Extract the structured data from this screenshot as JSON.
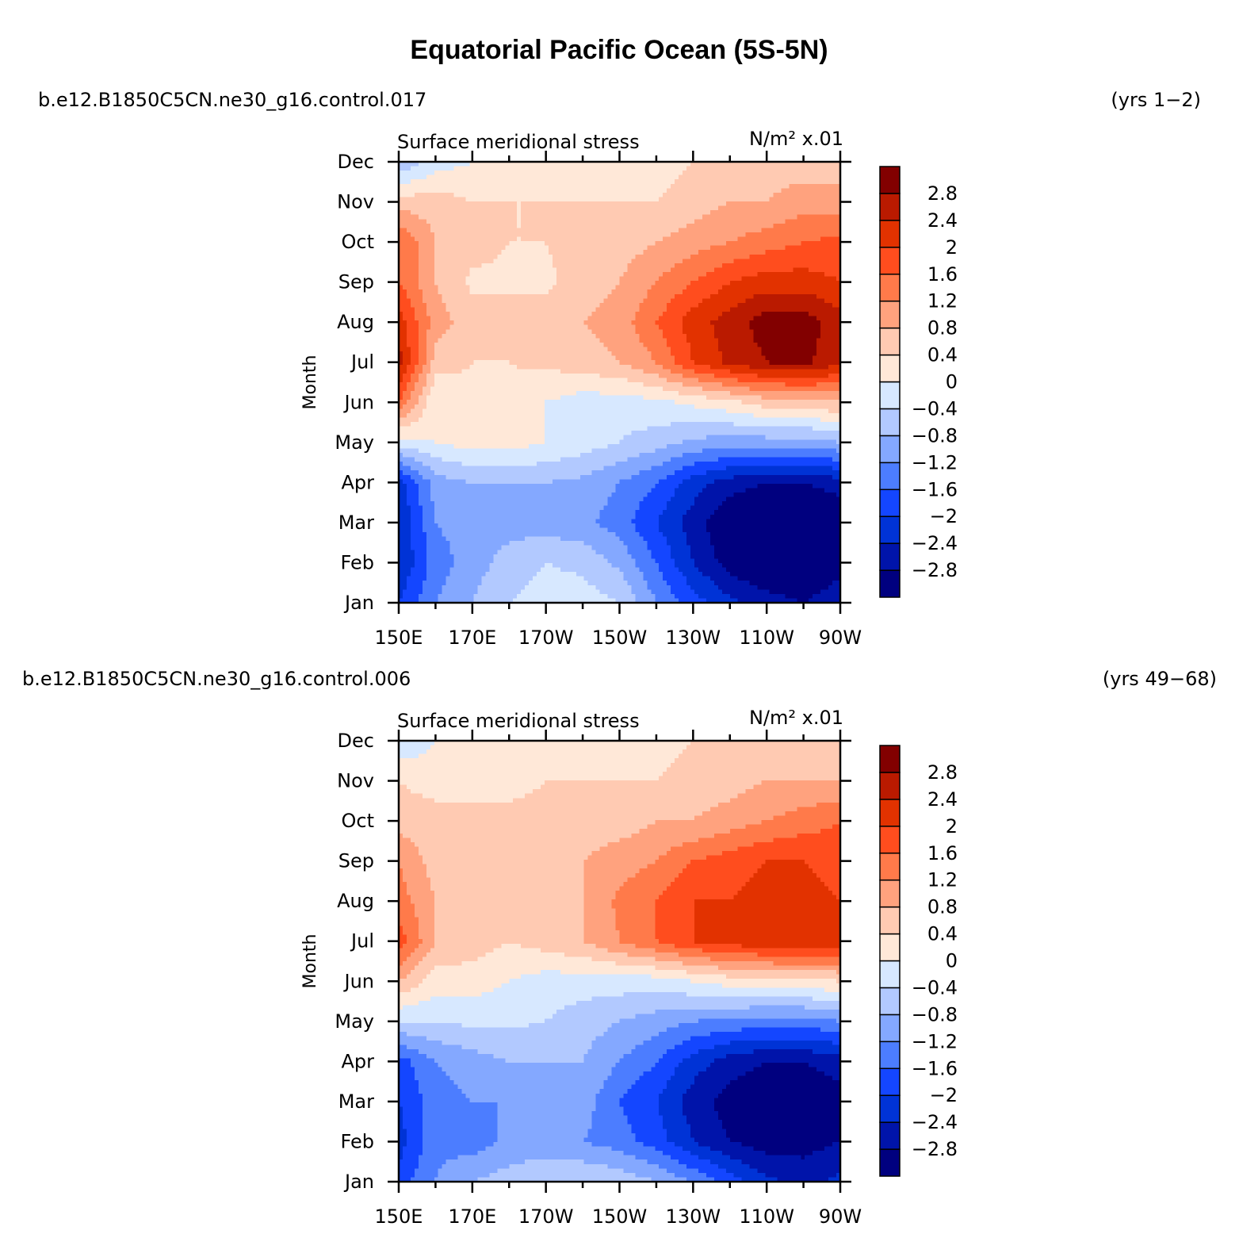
{
  "figure": {
    "title": "Equatorial Pacific Ocean (5S-5N)"
  },
  "chart_data": [
    {
      "type": "heatmap",
      "case_name": "b.e12.B1850C5CN.ne30_g16.control.017",
      "years": "(yrs 1−2)",
      "title": "Surface meridional stress",
      "units": "N/m² x.01",
      "xlabel": "",
      "ylabel": "Month",
      "x_ticks": [
        "150E",
        "170E",
        "170W",
        "150W",
        "130W",
        "110W",
        "90W"
      ],
      "x_tick_lon": [
        150,
        170,
        190,
        210,
        230,
        250,
        270
      ],
      "xlim": [
        150,
        270
      ],
      "y_ticks": [
        "Jan",
        "Feb",
        "Mar",
        "Apr",
        "May",
        "Jun",
        "Jul",
        "Aug",
        "Sep",
        "Oct",
        "Nov",
        "Dec"
      ],
      "color_levels": [
        -2.8,
        -2.4,
        -2,
        -1.6,
        -1.2,
        -0.8,
        -0.4,
        0,
        0.4,
        0.8,
        1.2,
        1.6,
        2,
        2.4,
        2.8
      ],
      "x": [
        150,
        160,
        170,
        180,
        190,
        200,
        210,
        220,
        230,
        240,
        250,
        260,
        270
      ],
      "values": [
        [
          -2.0,
          -1.2,
          -0.8,
          -0.4,
          -0.2,
          -0.2,
          -0.4,
          -1.2,
          -1.8,
          -2.3,
          -2.6,
          -2.8,
          -2.5
        ],
        [
          -2.4,
          -1.4,
          -1.0,
          -0.6,
          -0.4,
          -0.5,
          -0.9,
          -1.6,
          -2.4,
          -3.0,
          -3.3,
          -3.3,
          -3.0
        ],
        [
          -2.4,
          -1.2,
          -1.0,
          -1.0,
          -1.0,
          -1.1,
          -1.4,
          -2.0,
          -2.6,
          -3.2,
          -3.4,
          -3.4,
          -3.2
        ],
        [
          -2.2,
          -1.0,
          -0.8,
          -0.8,
          -0.8,
          -0.9,
          -1.2,
          -1.6,
          -2.2,
          -2.6,
          -2.8,
          -2.8,
          -2.6
        ],
        [
          -0.2,
          0.0,
          0.2,
          0.2,
          0.0,
          -0.2,
          -0.4,
          -0.6,
          -0.9,
          -1.0,
          -1.0,
          -1.0,
          -0.8
        ],
        [
          1.6,
          0.0,
          0.3,
          0.3,
          0.0,
          -0.2,
          -0.2,
          -0.1,
          0.1,
          0.3,
          0.6,
          0.6,
          0.8
        ],
        [
          2.6,
          0.6,
          0.4,
          0.4,
          0.5,
          0.6,
          0.8,
          1.2,
          2.0,
          2.5,
          2.8,
          2.9,
          2.5
        ],
        [
          2.2,
          1.0,
          0.6,
          0.6,
          0.6,
          0.8,
          1.0,
          1.6,
          2.2,
          2.6,
          3.0,
          3.0,
          2.6
        ],
        [
          1.6,
          0.8,
          0.3,
          0.3,
          0.3,
          0.6,
          0.8,
          1.2,
          1.6,
          2.0,
          2.2,
          2.2,
          2.0
        ],
        [
          1.6,
          0.8,
          0.6,
          0.4,
          0.4,
          0.6,
          0.6,
          0.8,
          1.0,
          1.2,
          1.4,
          1.6,
          1.7
        ],
        [
          0.6,
          0.6,
          0.4,
          0.4,
          0.4,
          0.4,
          0.4,
          0.4,
          0.6,
          0.8,
          0.8,
          1.0,
          1.0
        ],
        [
          -0.8,
          -0.2,
          0.0,
          0.2,
          0.2,
          0.2,
          0.2,
          0.2,
          0.4,
          0.6,
          0.6,
          0.6,
          0.6
        ]
      ]
    },
    {
      "type": "heatmap",
      "case_name": "b.e12.B1850C5CN.ne30_g16.control.006",
      "years": "(yrs 49−68)",
      "title": "Surface meridional stress",
      "units": "N/m² x.01",
      "xlabel": "",
      "ylabel": "Month",
      "x_ticks": [
        "150E",
        "170E",
        "170W",
        "150W",
        "130W",
        "110W",
        "90W"
      ],
      "x_tick_lon": [
        150,
        170,
        190,
        210,
        230,
        250,
        270
      ],
      "xlim": [
        150,
        270
      ],
      "y_ticks": [
        "Jan",
        "Feb",
        "Mar",
        "Apr",
        "May",
        "Jun",
        "Jul",
        "Aug",
        "Sep",
        "Oct",
        "Nov",
        "Dec"
      ],
      "color_levels": [
        -2.8,
        -2.4,
        -2,
        -1.6,
        -1.2,
        -0.8,
        -0.4,
        0,
        0.4,
        0.8,
        1.2,
        1.6,
        2,
        2.4,
        2.8
      ],
      "x": [
        150,
        160,
        170,
        180,
        190,
        200,
        210,
        220,
        230,
        240,
        250,
        260,
        270
      ],
      "values": [
        [
          -1.8,
          -1.2,
          -0.8,
          -0.6,
          -0.4,
          -0.4,
          -0.5,
          -0.8,
          -1.2,
          -1.8,
          -2.3,
          -2.5,
          -2.3
        ],
        [
          -2.2,
          -1.3,
          -1.4,
          -1.1,
          -1.1,
          -1.2,
          -1.4,
          -1.8,
          -2.4,
          -2.8,
          -3.0,
          -3.0,
          -2.8
        ],
        [
          -2.0,
          -1.4,
          -1.2,
          -1.2,
          -1.2,
          -1.0,
          -1.6,
          -2.0,
          -2.6,
          -3.0,
          -3.2,
          -3.2,
          -3.0
        ],
        [
          -1.8,
          -1.2,
          -1.0,
          -0.8,
          -0.8,
          -0.8,
          -1.2,
          -1.6,
          -2.2,
          -2.6,
          -2.8,
          -2.8,
          -2.6
        ],
        [
          -0.4,
          -0.4,
          -0.3,
          -0.3,
          -0.4,
          -0.6,
          -0.8,
          -1.0,
          -1.2,
          -1.3,
          -1.4,
          -1.4,
          -1.2
        ],
        [
          0.8,
          0.2,
          0.2,
          0.0,
          -0.2,
          -0.2,
          -0.2,
          -0.2,
          0.0,
          0.2,
          0.3,
          0.3,
          0.4
        ],
        [
          1.8,
          0.8,
          0.6,
          0.4,
          0.6,
          0.8,
          1.2,
          1.6,
          2.0,
          2.2,
          2.3,
          2.4,
          2.2
        ],
        [
          1.4,
          0.8,
          0.6,
          0.6,
          0.6,
          0.8,
          1.3,
          1.6,
          2.0,
          2.0,
          2.2,
          2.2,
          2.0
        ],
        [
          1.2,
          0.6,
          0.6,
          0.6,
          0.6,
          0.8,
          1.0,
          1.2,
          1.6,
          1.8,
          2.0,
          2.0,
          1.8
        ],
        [
          0.6,
          0.6,
          0.6,
          0.6,
          0.6,
          0.6,
          0.6,
          0.8,
          0.8,
          1.0,
          1.2,
          1.4,
          1.6
        ],
        [
          0.4,
          0.2,
          0.2,
          0.2,
          0.4,
          0.4,
          0.4,
          0.4,
          0.6,
          0.6,
          0.8,
          0.8,
          0.8
        ],
        [
          -0.4,
          0.0,
          0.2,
          0.2,
          0.2,
          0.2,
          0.2,
          0.2,
          0.4,
          0.4,
          0.6,
          0.6,
          0.6
        ]
      ]
    }
  ],
  "colors": {
    "palette": [
      "#00007f",
      "#0014aa",
      "#0033d6",
      "#1446ff",
      "#4c7dff",
      "#84a8ff",
      "#b2c9ff",
      "#d7e8ff",
      "#ffe8d8",
      "#ffcab2",
      "#ffa27e",
      "#ff7a4a",
      "#ff4d1e",
      "#e23200",
      "#ba1a00",
      "#820000"
    ]
  }
}
